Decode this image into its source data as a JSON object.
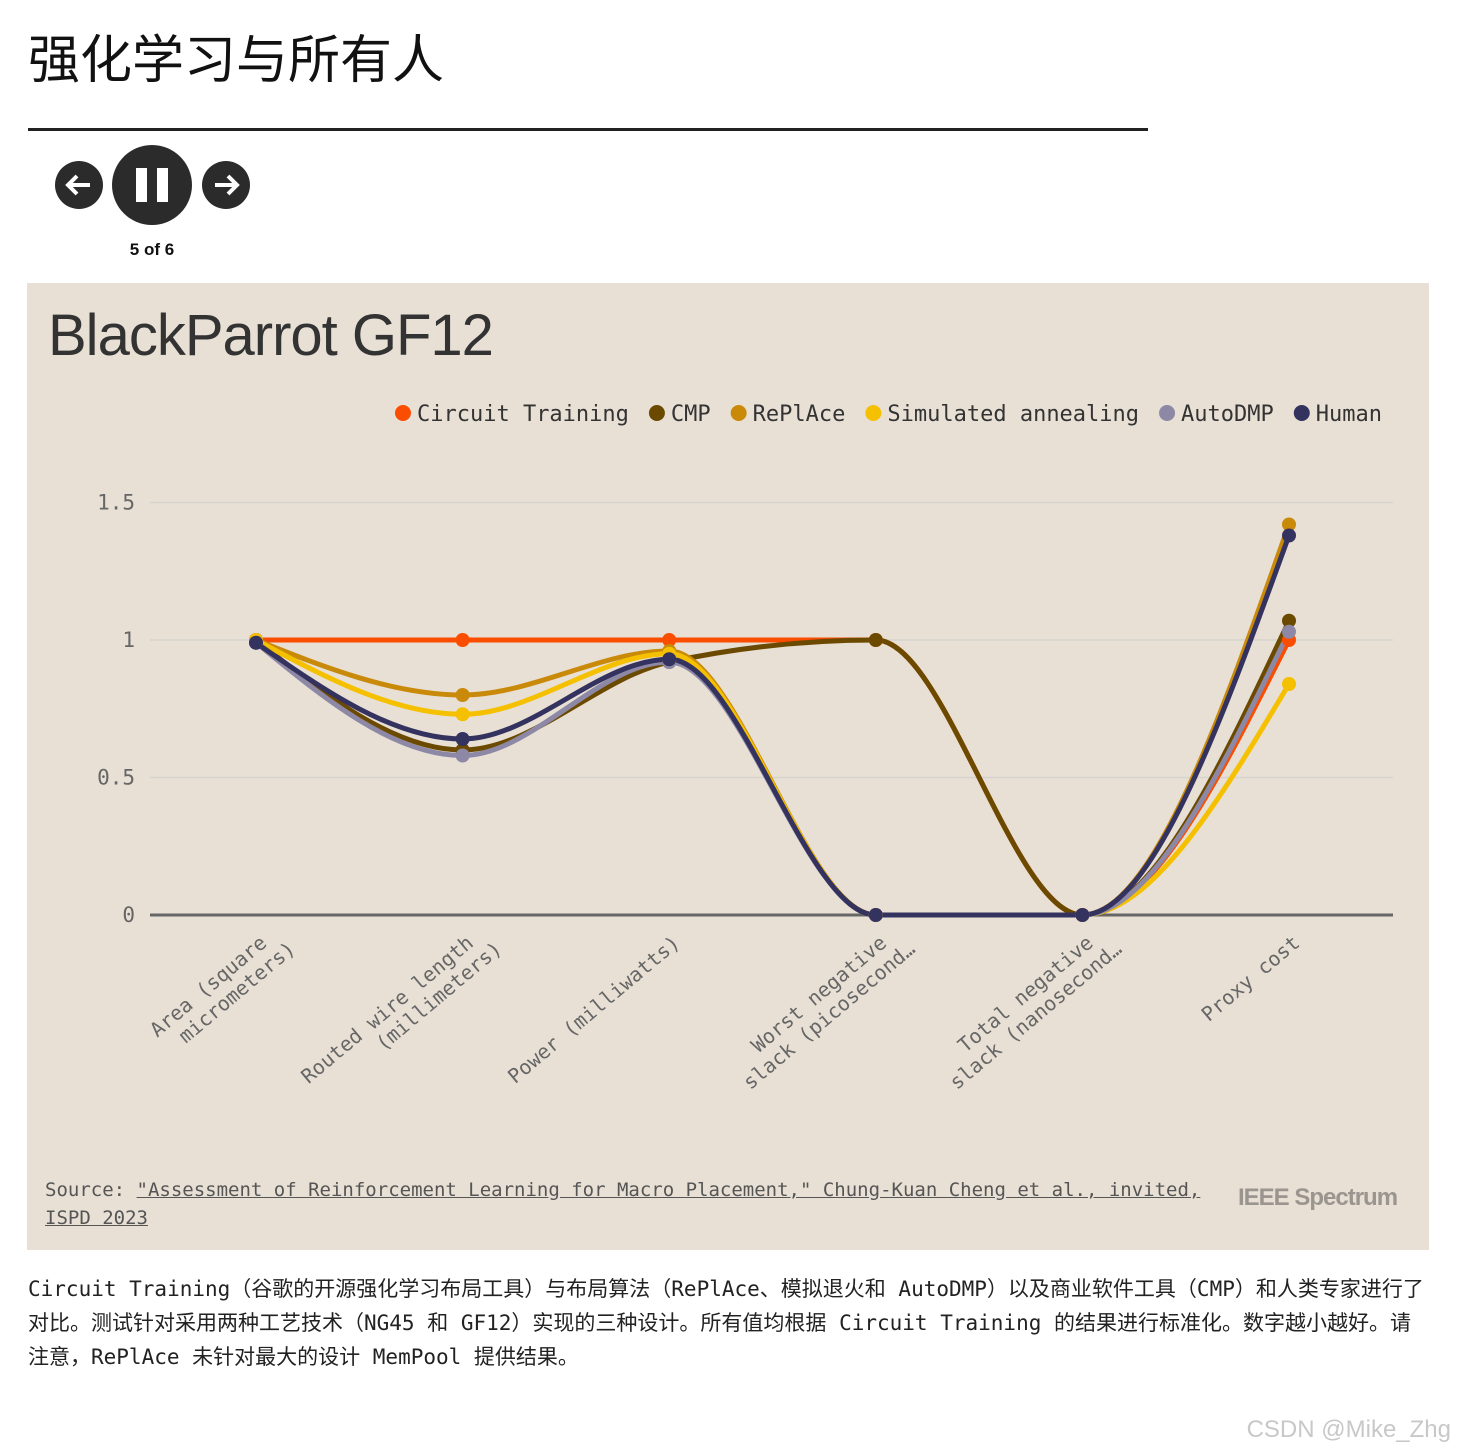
{
  "header": {
    "title": "强化学习与所有人"
  },
  "slideshow": {
    "counter": "5 of 6"
  },
  "chart_data": {
    "type": "line",
    "title": "BlackParrot GF12",
    "categories": [
      "Area (square micrometers)",
      "Routed wire length (millimeters)",
      "Power (milliwatts)",
      "Worst negative slack (picosecond…",
      "Total negative slack (nanosecond…",
      "Proxy cost"
    ],
    "series": [
      {
        "name": "Circuit Training",
        "color": "#fa4d00",
        "values": [
          1,
          1,
          1,
          1,
          0,
          1.0
        ]
      },
      {
        "name": "CMP",
        "color": "#6b4a00",
        "values": [
          1,
          0.6,
          0.92,
          1,
          0,
          1.07
        ]
      },
      {
        "name": "RePlAce",
        "color": "#c98a0a",
        "values": [
          1,
          0.8,
          0.96,
          0,
          0,
          1.42
        ]
      },
      {
        "name": "Simulated annealing",
        "color": "#f5c000",
        "values": [
          1,
          0.73,
          0.95,
          0,
          0,
          0.84
        ]
      },
      {
        "name": "AutoDMP",
        "color": "#8d88a6",
        "values": [
          0.99,
          0.58,
          0.92,
          0,
          0,
          1.03
        ]
      },
      {
        "name": "Human",
        "color": "#34325e",
        "values": [
          0.99,
          0.64,
          0.93,
          0,
          0,
          1.38
        ]
      }
    ],
    "ylim": [
      0,
      1.6
    ],
    "yticks": [
      0,
      0.5,
      1,
      1.5
    ],
    "grid": true,
    "legend": "top-right",
    "source_label": "Source:",
    "source_link": "\"Assessment of Reinforcement Learning for Macro Placement,\" Chung-Kuan Cheng et al., invited, ISPD 2023",
    "credit": "IEEE Spectrum"
  },
  "caption": "Circuit Training（谷歌的开源强化学习布局工具）与布局算法（RePlAce、模拟退火和 AutoDMP）以及商业软件工具（CMP）和人类专家进行了对比。测试针对采用两种工艺技术（NG45 和 GF12）实现的三种设计。所有值均根据 Circuit Training 的结果进行标准化。数字越小越好。请注意，RePlAce 未针对最大的设计 MemPool 提供结果。",
  "watermark": "CSDN @Mike_Zhg"
}
